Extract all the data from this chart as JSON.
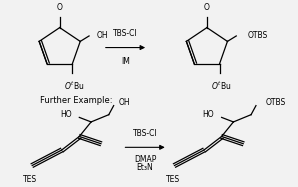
{
  "background_color": "#f2f2f2",
  "further_example_text": "Further Example:",
  "rxn1_reagent1": "TBS-Cl",
  "rxn1_reagent2": "IM",
  "rxn2_reagent1": "TBS-Cl",
  "rxn2_reagent2": "DMAP",
  "rxn2_reagent3": "Et₃N",
  "font_size_main": 5.5,
  "font_size_label": 5.5,
  "font_size_further": 6.0
}
